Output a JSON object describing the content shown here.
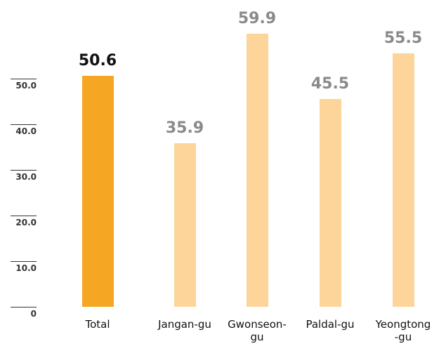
{
  "chart_data": {
    "type": "bar",
    "categories": [
      "Total",
      "Jangan-gu",
      "Gwonseon-gu",
      "Paldal-gu",
      "Yeongtong-gu"
    ],
    "values": [
      50.6,
      35.9,
      59.9,
      45.5,
      55.5
    ],
    "colors": [
      "#f5a623",
      "#fdd59a",
      "#fdd59a",
      "#fdd59a",
      "#fdd59a"
    ],
    "label_colors": [
      "#111111",
      "#8a8a8a",
      "#8a8a8a",
      "#8a8a8a",
      "#8a8a8a"
    ],
    "ylim": [
      0,
      65
    ],
    "yticks": [
      0,
      {
        "value": 10,
        "label": "10.0"
      },
      {
        "value": 20,
        "label": "20.0"
      },
      {
        "value": 30,
        "label": "30.0"
      },
      {
        "value": 40,
        "label": "40.0"
      },
      {
        "value": 50,
        "label": "50.0"
      }
    ]
  }
}
